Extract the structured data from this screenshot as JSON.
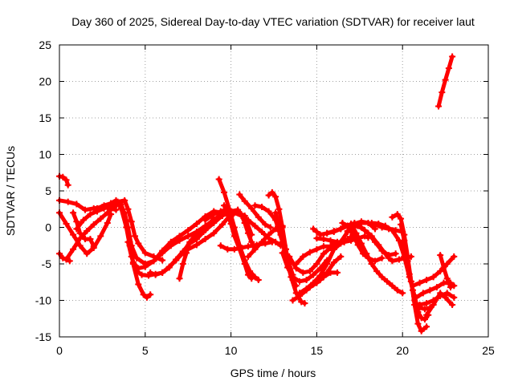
{
  "chart_data": {
    "type": "scatter",
    "title": "Day 360 of 2025, Sidereal Day-to-day VTEC variation (SDTVAR) for receiver laut",
    "xlabel": "GPS time / hours",
    "ylabel": "SDTVAR / TECUs",
    "xlim": [
      0,
      25
    ],
    "ylim": [
      -15,
      25
    ],
    "xticks": [
      0,
      5,
      10,
      15,
      20,
      25
    ],
    "yticks": [
      -15,
      -10,
      -5,
      0,
      5,
      10,
      15,
      20,
      25
    ],
    "xtick_labels": [
      "0",
      "5",
      "10",
      "15",
      "20",
      "25"
    ],
    "ytick_labels": [
      "-15",
      "-10",
      "-5",
      "0",
      "5",
      "10",
      "15",
      "20",
      "25"
    ],
    "grid": true,
    "legend": "none",
    "marker": "plus",
    "color": "#ff0000",
    "series": [
      {
        "name": "s1",
        "x": [
          0.0,
          0.2,
          0.4,
          0.5
        ],
        "y": [
          7.0,
          6.9,
          6.5,
          5.8
        ]
      },
      {
        "name": "s2",
        "x": [
          0.0,
          0.2,
          0.4,
          0.6
        ],
        "y": [
          -3.6,
          -4.2,
          -4.4,
          -4.6
        ]
      },
      {
        "name": "s3",
        "x": [
          0.0,
          0.4,
          0.8,
          1.2,
          1.6,
          2.0,
          2.4,
          2.8,
          3.0
        ],
        "y": [
          2.0,
          0.5,
          -1.0,
          -2.5,
          -3.6,
          -2.8,
          -1.2,
          0.6,
          1.8
        ]
      },
      {
        "name": "s4",
        "x": [
          0.0,
          0.5,
          1.0,
          1.5,
          2.0,
          2.5,
          3.0,
          3.3
        ],
        "y": [
          3.7,
          3.5,
          3.2,
          2.4,
          2.6,
          2.8,
          2.6,
          2.4
        ]
      },
      {
        "name": "s5",
        "x": [
          0.4,
          0.8,
          1.2,
          1.6,
          2.0,
          2.4,
          2.8,
          3.2,
          3.5
        ],
        "y": [
          -4.4,
          -3.0,
          -1.5,
          -0.5,
          0.4,
          1.2,
          2.0,
          2.8,
          3.4
        ]
      },
      {
        "name": "s6",
        "x": [
          0.8,
          1.0,
          1.2,
          1.5,
          1.8,
          2.0
        ],
        "y": [
          2.0,
          0.8,
          -0.8,
          -1.6,
          -1.6,
          -2.6
        ]
      },
      {
        "name": "s7",
        "x": [
          1.0,
          1.4,
          1.8,
          2.2,
          2.6,
          3.0,
          3.2
        ],
        "y": [
          -0.2,
          1.0,
          1.8,
          2.2,
          2.6,
          2.9,
          3.0
        ]
      },
      {
        "name": "s8",
        "x": [
          2.2,
          2.6,
          3.0,
          3.4,
          3.8,
          4.0,
          4.2,
          4.4,
          4.6,
          5.0,
          5.5,
          6.0
        ],
        "y": [
          2.6,
          3.0,
          3.3,
          3.5,
          3.7,
          2.5,
          0.8,
          -1.2,
          -2.2,
          -3.5,
          -4.0,
          -4.5
        ]
      },
      {
        "name": "s9",
        "x": [
          3.0,
          3.3,
          3.6,
          3.9,
          4.1,
          4.3,
          4.6,
          4.9,
          5.1,
          5.3
        ],
        "y": [
          3.3,
          3.7,
          3.2,
          1.0,
          -2.0,
          -5.0,
          -7.8,
          -9.2,
          -9.6,
          -9.2
        ]
      },
      {
        "name": "s10",
        "x": [
          3.4,
          3.8,
          4.0,
          4.2,
          4.5,
          5.0,
          5.5,
          6.0,
          6.5,
          7.0,
          7.5,
          8.0,
          8.5,
          9.0,
          9.4
        ],
        "y": [
          3.3,
          2.0,
          0.0,
          -2.5,
          -4.2,
          -5.0,
          -4.6,
          -3.5,
          -2.5,
          -1.8,
          -1.2,
          -0.6,
          0.2,
          1.0,
          1.8
        ]
      },
      {
        "name": "s11",
        "x": [
          3.6,
          3.9,
          4.1,
          4.3,
          4.6,
          5.0,
          5.5,
          6.0,
          6.5,
          7.0,
          7.5,
          8.0,
          8.5,
          9.0,
          9.5,
          10.0
        ],
        "y": [
          2.6,
          0.0,
          -2.5,
          -4.8,
          -5.6,
          -5.4,
          -4.6,
          -3.2,
          -2.0,
          -1.2,
          -0.4,
          0.5,
          1.5,
          2.2,
          2.0,
          1.5
        ]
      },
      {
        "name": "s12",
        "x": [
          4.0,
          4.2,
          4.5,
          4.8,
          5.2,
          5.6,
          6.0,
          6.4,
          6.8,
          7.2,
          7.6,
          8.0,
          8.4,
          8.8,
          9.0
        ],
        "y": [
          -2.0,
          -4.0,
          -6.0,
          -6.5,
          -6.6,
          -6.4,
          -6.2,
          -5.5,
          -4.4,
          -3.3,
          -2.2,
          -1.6,
          -0.6,
          0.6,
          1.2
        ]
      },
      {
        "name": "s13",
        "x": [
          5.3,
          5.6,
          6.0,
          6.4,
          6.8,
          7.2,
          7.6,
          8.0
        ],
        "y": [
          -6.2,
          -6.5,
          -6.2,
          -5.4,
          -4.5,
          -3.5,
          -2.0,
          -0.8
        ]
      },
      {
        "name": "s14",
        "x": [
          7.0,
          7.2,
          7.4
        ],
        "y": [
          -7.0,
          -5.0,
          -3.5
        ]
      },
      {
        "name": "s15",
        "x": [
          7.5,
          8.0,
          8.5,
          9.0,
          9.5,
          10.0,
          10.4,
          10.8,
          11.2
        ],
        "y": [
          -3.0,
          -2.4,
          -1.6,
          -0.8,
          0.4,
          1.8,
          2.0,
          1.6,
          -1.0
        ]
      },
      {
        "name": "s16",
        "x": [
          8.0,
          8.5,
          9.0,
          9.5,
          10.0,
          10.4,
          10.6,
          10.8,
          11.0,
          11.2,
          11.4
        ],
        "y": [
          -1.2,
          -0.4,
          0.6,
          1.6,
          2.2,
          2.4,
          1.8,
          0.6,
          -0.8,
          -2.0,
          -3.0
        ]
      },
      {
        "name": "s17",
        "x": [
          8.5,
          9.0,
          9.4,
          9.8
        ],
        "y": [
          1.0,
          1.8,
          2.2,
          2.5
        ]
      },
      {
        "name": "s18",
        "x": [
          9.3,
          9.6,
          9.9,
          10.2,
          10.5,
          10.8,
          11.1,
          11.4,
          11.6
        ],
        "y": [
          6.6,
          4.8,
          2.5,
          0.0,
          -2.5,
          -4.5,
          -6.0,
          -6.8,
          -7.2
        ]
      },
      {
        "name": "s19",
        "x": [
          9.6,
          9.8,
          10.0,
          10.2,
          10.5,
          10.8,
          11.0,
          11.2
        ],
        "y": [
          3.0,
          1.8,
          0.5,
          -1.2,
          -3.0,
          -5.0,
          -6.5,
          -7.0
        ]
      },
      {
        "name": "s20",
        "x": [
          9.4,
          9.8,
          10.2,
          10.6,
          11.0,
          11.5,
          12.0,
          12.4
        ],
        "y": [
          -2.5,
          -3.0,
          -3.0,
          -2.8,
          -2.6,
          -2.4,
          -2.2,
          -2.0
        ]
      },
      {
        "name": "s21",
        "x": [
          9.8,
          10.2,
          10.6,
          11.0,
          11.4,
          11.8,
          12.2,
          12.6,
          12.9
        ],
        "y": [
          1.8,
          2.0,
          1.6,
          1.0,
          0.2,
          -0.6,
          -1.5,
          -2.0,
          -2.5
        ]
      },
      {
        "name": "s22",
        "x": [
          10.5,
          10.8,
          11.2,
          11.6,
          12.0,
          12.3
        ],
        "y": [
          4.5,
          3.6,
          2.6,
          1.4,
          0.4,
          0.0
        ]
      },
      {
        "name": "s23",
        "x": [
          11.0,
          11.4,
          11.8,
          12.2,
          12.6,
          13.0
        ],
        "y": [
          -4.0,
          -3.0,
          -2.0,
          -1.0,
          -0.2,
          0.2
        ]
      },
      {
        "name": "s24",
        "x": [
          11.4,
          11.8,
          12.2,
          12.6,
          12.8,
          13.0,
          13.2
        ],
        "y": [
          3.0,
          2.8,
          2.2,
          1.0,
          -0.5,
          -2.0,
          -3.0
        ]
      },
      {
        "name": "s25",
        "x": [
          12.2,
          12.4,
          12.6,
          12.8,
          13.0,
          13.2,
          13.4,
          13.6,
          13.8
        ],
        "y": [
          4.4,
          4.8,
          4.2,
          2.5,
          0.0,
          -3.0,
          -5.5,
          -7.2,
          -8.0
        ]
      },
      {
        "name": "s26",
        "x": [
          12.6,
          12.9,
          13.2,
          13.5,
          13.8,
          14.1,
          14.3
        ],
        "y": [
          2.0,
          -1.0,
          -4.0,
          -6.8,
          -9.0,
          -10.2,
          -10.4
        ]
      },
      {
        "name": "s27",
        "x": [
          12.9,
          13.1,
          13.4,
          13.6
        ],
        "y": [
          -1.0,
          -2.5,
          -5.0,
          -6.5
        ]
      },
      {
        "name": "s28",
        "x": [
          13.0,
          13.3,
          13.6,
          14.0,
          14.4,
          14.8,
          15.2,
          15.6
        ],
        "y": [
          -3.5,
          -5.5,
          -6.8,
          -7.4,
          -7.2,
          -6.5,
          -5.6,
          -4.5
        ]
      },
      {
        "name": "s29",
        "x": [
          13.4,
          13.8,
          14.2,
          14.6,
          15.0,
          15.4,
          15.8,
          16.0
        ],
        "y": [
          -4.0,
          -5.6,
          -6.2,
          -6.0,
          -5.0,
          -3.6,
          -2.8,
          -2.2
        ]
      },
      {
        "name": "s30",
        "x": [
          13.6,
          14.0,
          14.4,
          14.8,
          15.2,
          15.6,
          16.0,
          16.4
        ],
        "y": [
          -10.0,
          -9.4,
          -8.6,
          -7.8,
          -7.2,
          -6.2,
          -4.8,
          -4.0
        ]
      },
      {
        "name": "s31",
        "x": [
          13.8,
          14.2,
          14.6,
          15.0,
          15.4,
          15.8,
          16.2,
          16.6
        ],
        "y": [
          -5.0,
          -4.0,
          -3.4,
          -3.0,
          -2.6,
          -2.6,
          -2.4,
          -2.0
        ]
      },
      {
        "name": "s32",
        "x": [
          14.0,
          14.4,
          14.8,
          15.2,
          15.6,
          16.0,
          16.4,
          16.8,
          17.2
        ],
        "y": [
          -9.0,
          -8.4,
          -7.6,
          -6.6,
          -5.0,
          -3.0,
          -2.2,
          -1.6,
          -1.0
        ]
      },
      {
        "name": "s33",
        "x": [
          14.6,
          15.0,
          15.4,
          15.8,
          16.2
        ],
        "y": [
          -8.2,
          -7.6,
          -6.8,
          -6.2,
          -6.2
        ]
      },
      {
        "name": "s34",
        "x": [
          14.8,
          15.0,
          15.2,
          15.6,
          16.0,
          16.4,
          16.8,
          17.2
        ],
        "y": [
          -0.2,
          -0.6,
          -1.0,
          -0.8,
          -0.5,
          -0.2,
          0.2,
          0.6
        ]
      },
      {
        "name": "s35",
        "x": [
          15.6,
          16.0,
          16.4,
          16.8,
          17.2,
          17.6,
          18.0,
          18.4
        ],
        "y": [
          -0.8,
          -0.6,
          -0.2,
          0.2,
          0.5,
          0.8,
          0.6,
          -0.2
        ]
      },
      {
        "name": "s36",
        "x": [
          15.0,
          15.4,
          15.8,
          16.2,
          16.6,
          17.0,
          17.4,
          17.8,
          18.0
        ],
        "y": [
          -1.5,
          -1.6,
          -1.8,
          -2.0,
          -2.0,
          -1.8,
          -1.5,
          -1.2,
          -1.4
        ]
      },
      {
        "name": "s37",
        "x": [
          16.0,
          16.4,
          16.8,
          17.2,
          17.6,
          18.0,
          18.4,
          18.8,
          19.2,
          19.6
        ],
        "y": [
          -3.0,
          -2.0,
          -0.6,
          0.2,
          0.0,
          -0.8,
          -2.0,
          -3.2,
          -3.8,
          -3.6
        ]
      },
      {
        "name": "s38",
        "x": [
          16.5,
          16.8,
          17.1,
          17.4,
          17.7,
          18.0,
          18.4,
          18.8
        ],
        "y": [
          0.6,
          0.2,
          -1.0,
          -2.4,
          -3.6,
          -4.2,
          -4.6,
          -4.2
        ]
      },
      {
        "name": "s39",
        "x": [
          16.8,
          17.2,
          17.6,
          18.0,
          18.4,
          18.8,
          19.2,
          19.6,
          20.0
        ],
        "y": [
          -0.5,
          0.4,
          0.6,
          0.6,
          0.4,
          0.0,
          -0.2,
          -0.4,
          -0.6
        ]
      },
      {
        "name": "s40",
        "x": [
          17.0,
          17.3,
          17.6,
          17.9,
          18.2,
          18.5,
          18.8,
          19.1,
          19.4,
          19.7,
          20.0
        ],
        "y": [
          0.5,
          -0.8,
          -2.2,
          -3.6,
          -5.0,
          -6.0,
          -6.8,
          -7.4,
          -8.0,
          -8.6,
          -9.0
        ]
      },
      {
        "name": "s41",
        "x": [
          17.4,
          17.8,
          18.2,
          18.6,
          19.0,
          19.2,
          19.4,
          19.8,
          20.2,
          20.5
        ],
        "y": [
          0.2,
          -0.4,
          -1.2,
          -2.4,
          -3.6,
          -4.2,
          -4.6,
          -4.4,
          -4.2,
          -4.0
        ]
      },
      {
        "name": "s42",
        "x": [
          18.2,
          18.6,
          19.0,
          19.4,
          19.8,
          20.1,
          20.4,
          20.7
        ],
        "y": [
          0.6,
          0.5,
          0.2,
          -0.4,
          -1.8,
          -4.0,
          -6.8,
          -9.4
        ]
      },
      {
        "name": "s43",
        "x": [
          19.4,
          19.7,
          19.9,
          20.1,
          20.3,
          20.5,
          20.7,
          20.9,
          21.1,
          21.4
        ],
        "y": [
          1.4,
          1.8,
          1.2,
          -1.0,
          -4.0,
          -7.4,
          -10.6,
          -13.2,
          -14.2,
          -13.6
        ]
      },
      {
        "name": "s44",
        "x": [
          19.9,
          20.1,
          20.3,
          20.5,
          20.7,
          20.9,
          21.1,
          21.3,
          21.5
        ],
        "y": [
          0.4,
          -1.8,
          -4.6,
          -7.4,
          -10.0,
          -11.6,
          -12.4,
          -12.6,
          -12.0
        ]
      },
      {
        "name": "s45",
        "x": [
          20.0,
          20.2,
          20.4,
          20.6,
          20.8,
          21.0,
          21.3,
          21.6
        ],
        "y": [
          -2.0,
          -4.0,
          -6.4,
          -8.6,
          -10.4,
          -11.0,
          -11.2,
          -11.0
        ]
      },
      {
        "name": "s46",
        "x": [
          20.6,
          21.0,
          21.4,
          21.8,
          22.2,
          22.6,
          23.0
        ],
        "y": [
          -8.0,
          -7.6,
          -7.2,
          -6.8,
          -6.0,
          -5.0,
          -4.0
        ]
      },
      {
        "name": "s47",
        "x": [
          20.8,
          21.2,
          21.6,
          22.0,
          22.4,
          22.8,
          23.0
        ],
        "y": [
          -9.6,
          -9.0,
          -8.6,
          -8.2,
          -7.6,
          -7.6,
          -8.0
        ]
      },
      {
        "name": "s48",
        "x": [
          21.0,
          21.4,
          21.8,
          22.2,
          22.6,
          23.0
        ],
        "y": [
          -10.6,
          -10.4,
          -10.0,
          -9.4,
          -9.0,
          -9.6
        ]
      },
      {
        "name": "s49",
        "x": [
          21.4,
          21.8,
          22.2,
          22.5,
          22.9
        ],
        "y": [
          -12.0,
          -10.6,
          -9.0,
          -9.6,
          -10.6
        ]
      },
      {
        "name": "s50",
        "x": [
          22.2,
          22.4,
          22.6,
          22.8
        ],
        "y": [
          -3.8,
          -5.5,
          -7.0,
          -8.2
        ]
      },
      {
        "name": "s51",
        "x": [
          22.1,
          22.3,
          22.5,
          22.7,
          22.9
        ],
        "y": [
          16.6,
          18.5,
          20.2,
          21.8,
          23.4
        ]
      }
    ]
  }
}
